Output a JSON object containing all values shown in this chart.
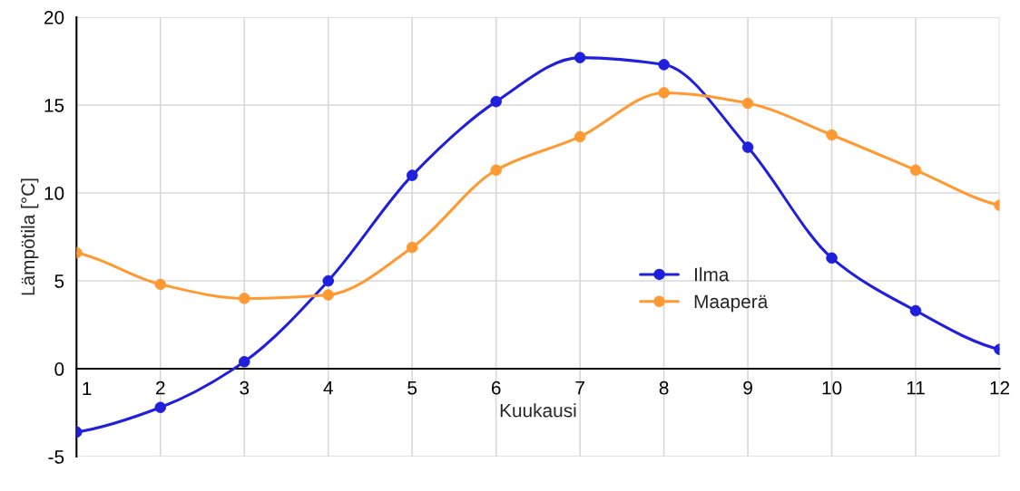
{
  "chart_data": {
    "type": "line",
    "xlabel": "Kuukausi",
    "ylabel": "Lämpötila [°C]",
    "x": [
      1,
      2,
      3,
      4,
      5,
      6,
      7,
      8,
      9,
      10,
      11,
      12
    ],
    "series": [
      {
        "name": "Ilma",
        "color": "#1f1fdc",
        "values": [
          -3.6,
          -2.2,
          0.4,
          5.0,
          11.0,
          15.2,
          17.7,
          17.3,
          12.6,
          6.3,
          3.3,
          1.1
        ]
      },
      {
        "name": "Maaperä",
        "color": "#ff9a33",
        "values": [
          6.6,
          4.8,
          4.0,
          4.2,
          6.9,
          11.3,
          13.2,
          15.7,
          15.1,
          13.3,
          11.3,
          9.3
        ]
      }
    ],
    "xlim": [
      1,
      12
    ],
    "xticks": [
      1,
      2,
      3,
      4,
      5,
      6,
      7,
      8,
      9,
      10,
      11,
      12
    ],
    "ylim": [
      -5,
      20
    ],
    "yticks": [
      -5,
      0,
      5,
      10,
      15,
      20
    ],
    "grid": true,
    "legend": "right",
    "marker": "circle",
    "line_style": "solid"
  }
}
